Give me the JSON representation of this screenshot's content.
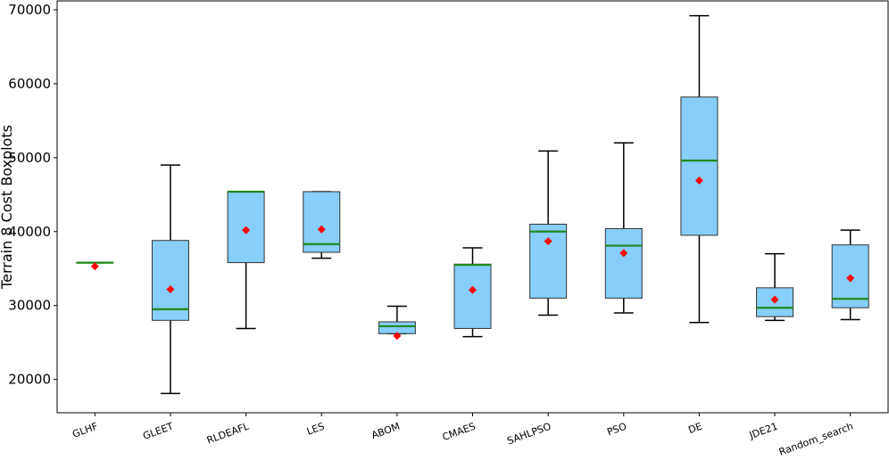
{
  "chart_data": {
    "type": "boxplot",
    "title": "",
    "xlabel": "",
    "ylabel": "Terrain 8 Cost Boxplots",
    "ylim": [
      15500,
      71200
    ],
    "yticks": [
      20000,
      30000,
      40000,
      50000,
      60000,
      70000
    ],
    "ytick_labels": [
      "20000",
      "30000",
      "40000",
      "50000",
      "60000",
      "70000"
    ],
    "grid": false,
    "colors": {
      "box_fill": "#87cefa",
      "box_edge": "#333333",
      "median": "#1f8a1f",
      "mean": "#ff0000",
      "whisker": "#000000"
    },
    "categories": [
      "GLHF",
      "GLEET",
      "RLDEAFL",
      "LES",
      "ABOM",
      "CMAES",
      "SAHLPSO",
      "PSO",
      "DE",
      "JDE21",
      "Random_search"
    ],
    "boxes": [
      {
        "name": "GLHF",
        "whisker_low": 35800,
        "q1": 35800,
        "median": 35800,
        "q3": 35800,
        "whisker_high": 35800,
        "mean": 35300
      },
      {
        "name": "GLEET",
        "whisker_low": 18100,
        "q1": 28000,
        "median": 29500,
        "q3": 38800,
        "whisker_high": 49000,
        "mean": 32200
      },
      {
        "name": "RLDEAFL",
        "whisker_low": 26900,
        "q1": 35800,
        "median": 45400,
        "q3": 45400,
        "whisker_high": 45400,
        "mean": 40200
      },
      {
        "name": "LES",
        "whisker_low": 36400,
        "q1": 37200,
        "median": 38300,
        "q3": 45400,
        "whisker_high": 45400,
        "mean": 40300
      },
      {
        "name": "ABOM",
        "whisker_low": 26200,
        "q1": 26200,
        "median": 27200,
        "q3": 27800,
        "whisker_high": 29900,
        "mean": 25900
      },
      {
        "name": "CMAES",
        "whisker_low": 25800,
        "q1": 26900,
        "median": 35500,
        "q3": 35600,
        "whisker_high": 37800,
        "mean": 32100
      },
      {
        "name": "SAHLPSO",
        "whisker_low": 28700,
        "q1": 31000,
        "median": 40000,
        "q3": 41000,
        "whisker_high": 50900,
        "mean": 38700
      },
      {
        "name": "PSO",
        "whisker_low": 29000,
        "q1": 31000,
        "median": 38100,
        "q3": 40400,
        "whisker_high": 52000,
        "mean": 37100
      },
      {
        "name": "DE",
        "whisker_low": 27700,
        "q1": 39500,
        "median": 49600,
        "q3": 58200,
        "whisker_high": 69200,
        "mean": 46900
      },
      {
        "name": "JDE21",
        "whisker_low": 28000,
        "q1": 28500,
        "median": 29700,
        "q3": 32400,
        "whisker_high": 37000,
        "mean": 30800
      },
      {
        "name": "Random_search",
        "whisker_low": 28100,
        "q1": 29700,
        "median": 30900,
        "q3": 38200,
        "whisker_high": 40200,
        "mean": 33700
      }
    ]
  }
}
